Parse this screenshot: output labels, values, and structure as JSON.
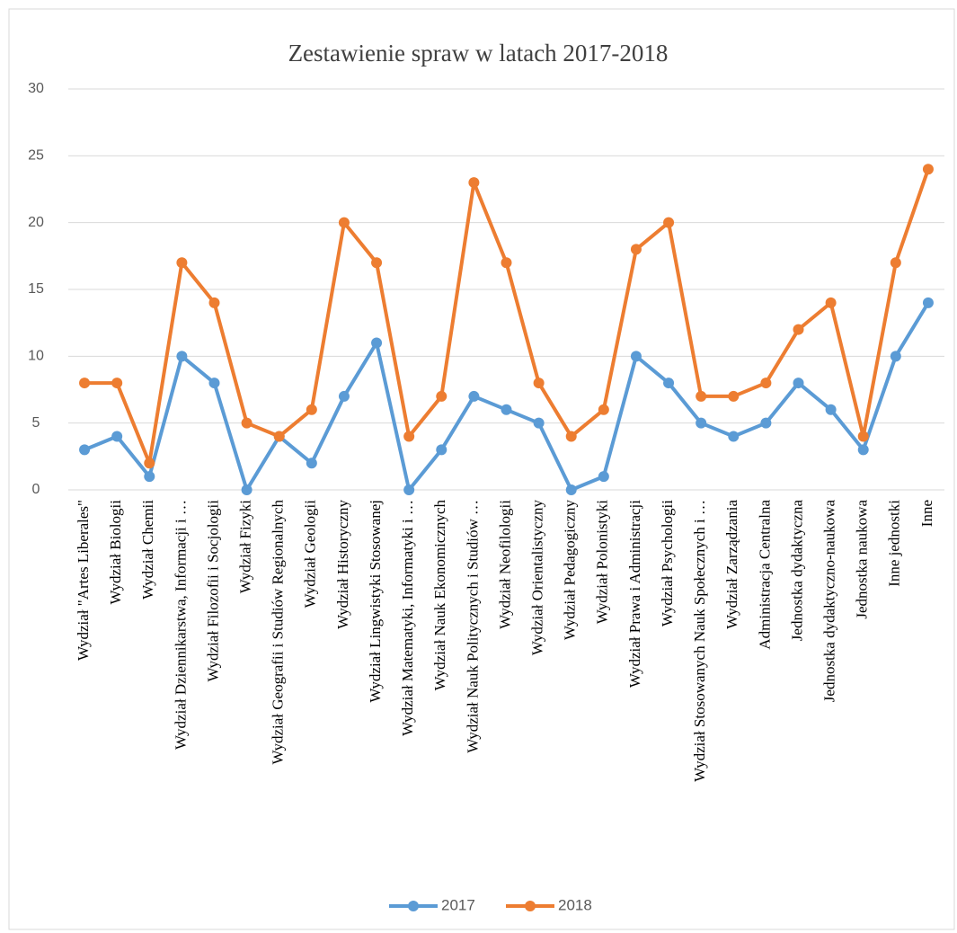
{
  "chart_data": {
    "type": "line",
    "title": "Zestawienie  spraw w latach 2017-2018",
    "categories": [
      "Wydział \"Artes Liberales\"",
      "Wydział Biologii",
      "Wydział Chemii",
      "Wydział Dziennikarstwa, Informacji i …",
      "Wydział Filozofii i Socjologii",
      "Wydział Fizyki",
      "Wydział Geografii i Studiów Regionalnych",
      "Wydział Geologii",
      "Wydział Historyczny",
      "Wydział Lingwistyki Stosowanej",
      "Wydział Matematyki, Informatyki i …",
      "Wydział Nauk Ekonomicznych",
      "Wydział Nauk Politycznych i Studiów …",
      "Wydział Neofilologii",
      "Wydział Orientalistyczny",
      "Wydział Pedagogiczny",
      "Wydział Polonistyki",
      "Wydział Prawa i Administracji",
      "Wydział Psychologii",
      "Wydział Stosowanych Nauk Społecznych i …",
      "Wydział Zarządzania",
      "Administracja Centralna",
      "Jednostka dydaktyczna",
      "Jednostka dydaktyczno-naukowa",
      "Jednostka naukowa",
      "Inne jednostki",
      "Inne"
    ],
    "series": [
      {
        "name": "2017",
        "color": "#5b9bd5",
        "values": [
          3,
          4,
          1,
          10,
          8,
          0,
          4,
          2,
          7,
          11,
          0,
          3,
          7,
          6,
          5,
          0,
          1,
          10,
          8,
          5,
          4,
          5,
          8,
          6,
          3,
          10,
          14
        ]
      },
      {
        "name": "2018",
        "color": "#ed7d31",
        "values": [
          8,
          8,
          2,
          17,
          14,
          5,
          4,
          6,
          20,
          17,
          4,
          7,
          23,
          17,
          8,
          4,
          6,
          18,
          20,
          7,
          7,
          8,
          12,
          14,
          4,
          17,
          24
        ]
      }
    ],
    "ylim": [
      0,
      30
    ],
    "yticks": [
      0,
      5,
      10,
      15,
      20,
      25,
      30
    ],
    "grid": true,
    "legend": "bottom"
  }
}
